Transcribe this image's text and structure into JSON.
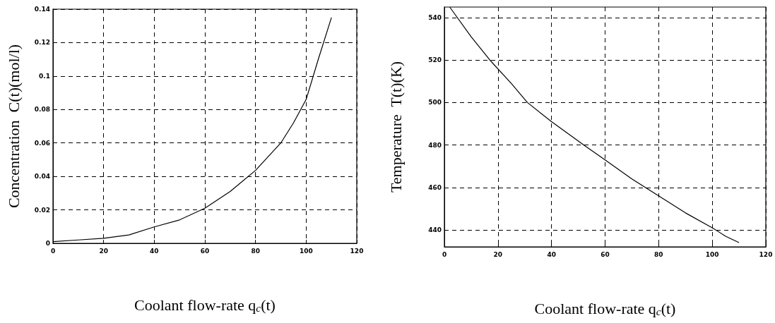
{
  "chart_data": [
    {
      "type": "line",
      "xlabel": "Coolant flow-rate q$_{c}$(t)",
      "ylabel": "Concentration  C(t)(mol/l)",
      "xlim": [
        0,
        120
      ],
      "xticks": [
        0,
        20,
        40,
        60,
        80,
        100,
        120
      ],
      "ylim": [
        0,
        0.14
      ],
      "yticks": [
        0,
        0.02,
        0.04,
        0.06,
        0.08,
        0.1,
        0.12,
        0.14
      ],
      "grid": true,
      "marker": "none",
      "line_style": "solid",
      "series": [
        {
          "color": "#000000",
          "x": [
            0,
            10,
            20,
            30,
            40,
            50,
            60,
            70,
            80,
            90,
            95,
            100,
            105,
            110
          ],
          "values": [
            0.001,
            0.002,
            0.003,
            0.005,
            0.0098,
            0.014,
            0.021,
            0.031,
            0.0436,
            0.06,
            0.072,
            0.086,
            0.111,
            0.135
          ]
        }
      ]
    },
    {
      "type": "line",
      "xlabel": "Coolant flow-rate q$_{c}$(t)",
      "ylabel": "Temperature  T(t)(K)",
      "xlim": [
        0,
        120
      ],
      "xticks": [
        0,
        20,
        40,
        60,
        80,
        100,
        120
      ],
      "ylim": [
        432,
        545
      ],
      "yticks": [
        440,
        460,
        480,
        500,
        520,
        540
      ],
      "grid": true,
      "marker": "none",
      "line_style": "solid",
      "series": [
        {
          "color": "#000000",
          "x": [
            2,
            10,
            17,
            25,
            31,
            40,
            52,
            60,
            70,
            80,
            90,
            100,
            105,
            110
          ],
          "values": [
            545,
            531,
            520,
            509,
            500,
            491,
            480,
            473,
            464,
            456,
            448,
            441,
            437,
            434
          ]
        }
      ]
    }
  ]
}
